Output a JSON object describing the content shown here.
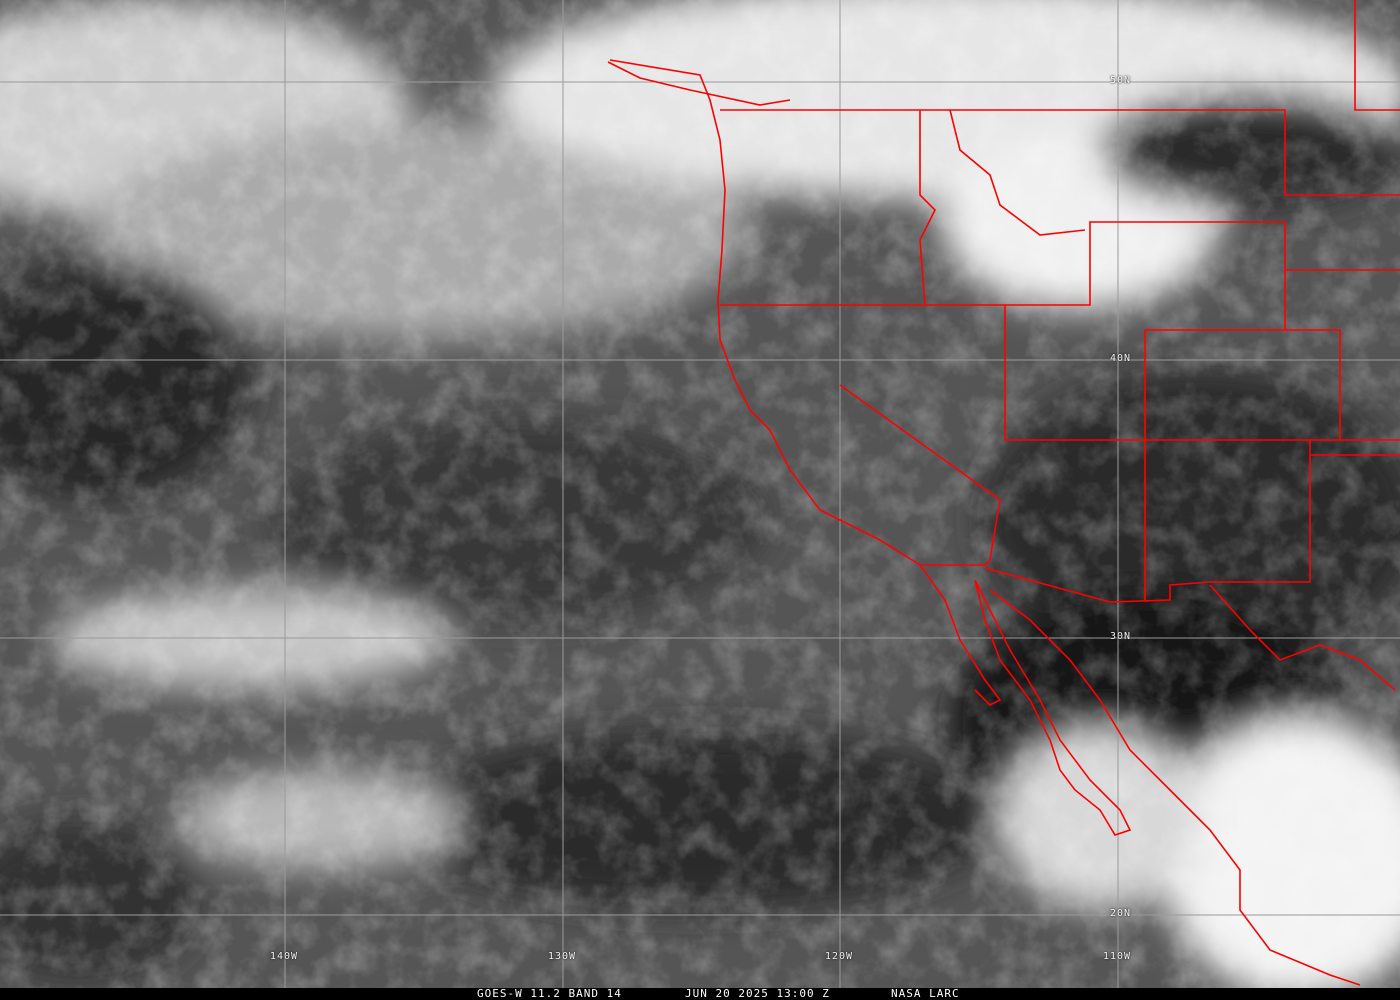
{
  "caption": {
    "sensor": "GOES-W 11.2 BAND 14",
    "datetime": "JUN 20 2025 13:00 Z",
    "source": "NASA LARC"
  },
  "latitude_labels": [
    "50N",
    "40N",
    "30N",
    "20N"
  ],
  "longitude_labels": [
    "140W",
    "130W",
    "120W",
    "110W"
  ],
  "colors": {
    "borders": "#ff0000",
    "grid": "#9a9a9a",
    "background": "#000000"
  }
}
